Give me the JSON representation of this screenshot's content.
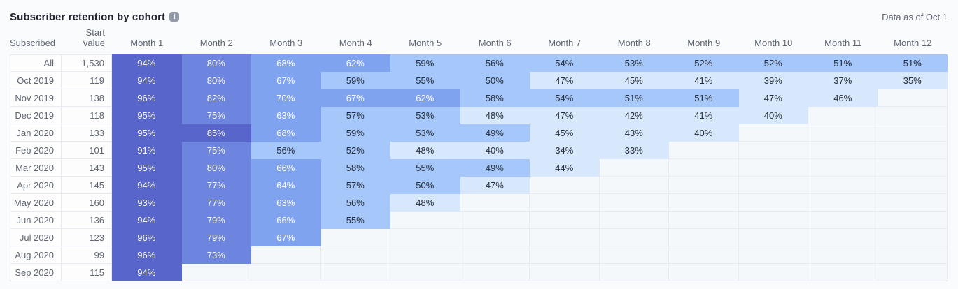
{
  "header": {
    "title": "Subscriber retention by cohort",
    "info_icon_glyph": "i",
    "data_as_of": "Data as of Oct 1"
  },
  "chart_data": {
    "type": "heatmap",
    "title": "Subscriber retention by cohort",
    "unit": "%",
    "columns": [
      "Subscribed",
      "Start value",
      "Month 1",
      "Month 2",
      "Month 3",
      "Month 4",
      "Month 5",
      "Month 6",
      "Month 7",
      "Month 8",
      "Month 9",
      "Month 10",
      "Month 11",
      "Month 12"
    ],
    "rows": [
      {
        "label": "All",
        "start_value": "1,530",
        "values": [
          94,
          80,
          68,
          62,
          59,
          56,
          54,
          53,
          52,
          52,
          51,
          51
        ]
      },
      {
        "label": "Oct 2019",
        "start_value": "119",
        "values": [
          94,
          80,
          67,
          59,
          55,
          50,
          47,
          45,
          41,
          39,
          37,
          35
        ]
      },
      {
        "label": "Nov 2019",
        "start_value": "138",
        "values": [
          96,
          82,
          70,
          67,
          62,
          58,
          54,
          51,
          51,
          47,
          46
        ]
      },
      {
        "label": "Dec 2019",
        "start_value": "118",
        "values": [
          95,
          75,
          63,
          57,
          53,
          48,
          47,
          42,
          41,
          40
        ]
      },
      {
        "label": "Jan 2020",
        "start_value": "133",
        "values": [
          95,
          85,
          68,
          59,
          53,
          49,
          45,
          43,
          40
        ]
      },
      {
        "label": "Feb 2020",
        "start_value": "101",
        "values": [
          91,
          75,
          56,
          52,
          48,
          40,
          34,
          33
        ]
      },
      {
        "label": "Mar 2020",
        "start_value": "143",
        "values": [
          95,
          80,
          66,
          58,
          55,
          49,
          44
        ]
      },
      {
        "label": "Apr 2020",
        "start_value": "145",
        "values": [
          94,
          77,
          64,
          57,
          50,
          47
        ]
      },
      {
        "label": "May 2020",
        "start_value": "160",
        "values": [
          93,
          77,
          63,
          56,
          48
        ]
      },
      {
        "label": "Jun 2020",
        "start_value": "136",
        "values": [
          94,
          79,
          66,
          55
        ]
      },
      {
        "label": "Jul 2020",
        "start_value": "123",
        "values": [
          96,
          79,
          67
        ]
      },
      {
        "label": "Aug 2020",
        "start_value": "99",
        "values": [
          96,
          73
        ]
      },
      {
        "label": "Sep 2020",
        "start_value": "115",
        "values": [
          94
        ]
      }
    ],
    "color_scale": [
      {
        "min": 85,
        "bg": "#5865cb",
        "text": "#ffffff"
      },
      {
        "min": 71,
        "bg": "#6d85de",
        "text": "#ffffff"
      },
      {
        "min": 61,
        "bg": "#80a3f0",
        "text": "#ffffff"
      },
      {
        "min": 49,
        "bg": "#a5c7f9",
        "text": "#262c38"
      },
      {
        "min": 0,
        "bg": "#d7e8fd",
        "text": "#262c38"
      }
    ],
    "empty_cell_color": "#f5f8fb",
    "legend_position": "none",
    "grid": true
  }
}
